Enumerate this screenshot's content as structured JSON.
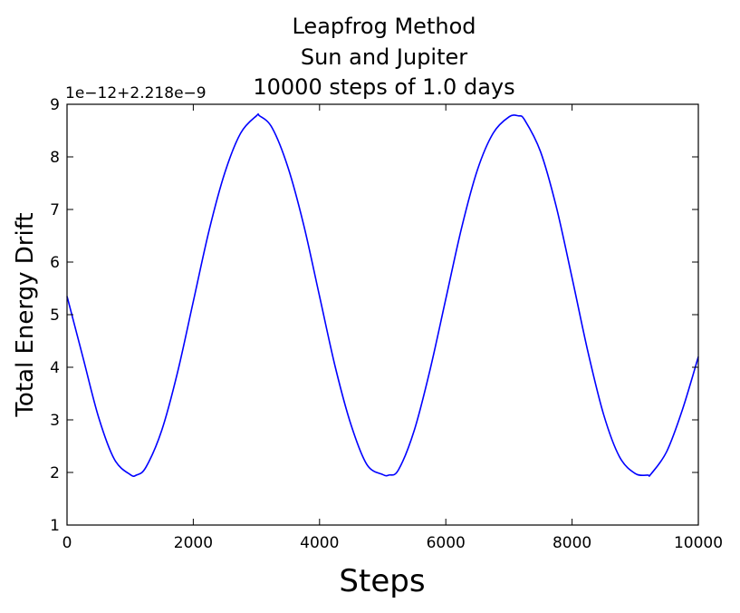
{
  "chart_data": {
    "type": "line",
    "title_lines": [
      "Leapfrog Method",
      "Sun and Jupiter",
      "10000 steps of 1.0 days"
    ],
    "xlabel": "Steps",
    "ylabel": "Total Energy Drift",
    "offset_label": "1e−12+2.218e−9",
    "xlim": [
      0,
      10000
    ],
    "ylim": [
      1,
      9
    ],
    "xticks": [
      0,
      2000,
      4000,
      6000,
      8000,
      10000
    ],
    "xtick_labels": [
      "0",
      "2000",
      "4000",
      "6000",
      "8000",
      "10000"
    ],
    "yticks": [
      1,
      2,
      3,
      4,
      5,
      6,
      7,
      8,
      9
    ],
    "ytick_labels": [
      "1",
      "2",
      "3",
      "4",
      "5",
      "6",
      "7",
      "8",
      "9"
    ],
    "grid": false,
    "series_color": "#0000ff",
    "series": [
      {
        "x": [
          0,
          250,
          500,
          750,
          1000,
          1100,
          1250,
          1500,
          1750,
          2000,
          2250,
          2500,
          2750,
          3000,
          3050,
          3250,
          3500,
          3750,
          4000,
          4250,
          4500,
          4750,
          5000,
          5100,
          5250,
          5500,
          5750,
          6000,
          6250,
          6500,
          6750,
          7000,
          7150,
          7250,
          7500,
          7750,
          8000,
          8250,
          8500,
          8750,
          9000,
          9200,
          9250,
          9500,
          9750,
          10000
        ],
        "y": [
          5.35,
          4.2,
          3.05,
          2.25,
          1.96,
          1.95,
          2.1,
          2.8,
          3.9,
          5.25,
          6.6,
          7.7,
          8.45,
          8.78,
          8.78,
          8.55,
          7.8,
          6.7,
          5.35,
          4.0,
          2.9,
          2.15,
          1.96,
          1.95,
          2.05,
          2.8,
          3.95,
          5.3,
          6.65,
          7.75,
          8.45,
          8.76,
          8.78,
          8.7,
          8.1,
          7.05,
          5.7,
          4.3,
          3.1,
          2.3,
          1.98,
          1.95,
          1.97,
          2.4,
          3.2,
          4.2
        ]
      }
    ]
  }
}
